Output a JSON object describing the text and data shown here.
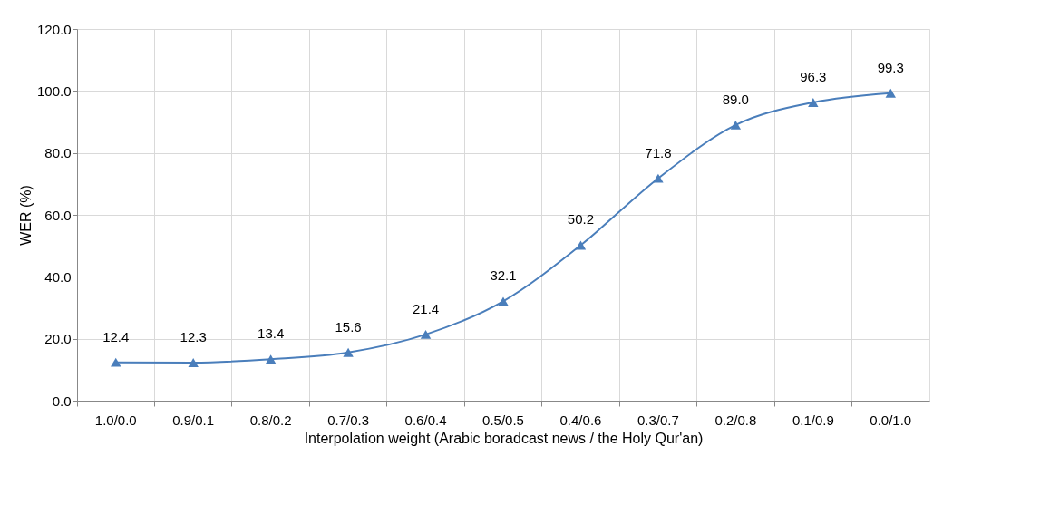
{
  "chart_data": {
    "type": "line",
    "xlabel": "Interpolation weight (Arabic boradcast news / the Holy Qur'an)",
    "ylabel": "WER (%)",
    "categories": [
      "1.0/0.0",
      "0.9/0.1",
      "0.8/0.2",
      "0.7/0.3",
      "0.6/0.4",
      "0.5/0.5",
      "0.4/0.6",
      "0.3/0.7",
      "0.2/0.8",
      "0.1/0.9",
      "0.0/1.0"
    ],
    "series": [
      {
        "color": "#4a7ebb",
        "values": [
          12.4,
          12.3,
          13.4,
          15.6,
          21.4,
          32.1,
          50.2,
          71.8,
          89.0,
          96.3,
          99.3
        ],
        "value_labels": [
          "12.4",
          "12.3",
          "13.4",
          "15.6",
          "21.4",
          "32.1",
          "50.2",
          "71.8",
          "89.0",
          "96.3",
          "99.3"
        ]
      }
    ],
    "ylim": [
      0,
      120
    ],
    "yticks": [
      {
        "value": 0,
        "label": "0.0"
      },
      {
        "value": 20,
        "label": "20.0"
      },
      {
        "value": 40,
        "label": "40.0"
      },
      {
        "value": 60,
        "label": "60.0"
      },
      {
        "value": 80,
        "label": "80.0"
      },
      {
        "value": 100,
        "label": "100.0"
      },
      {
        "value": 120,
        "label": "120.0"
      }
    ],
    "grid": true,
    "marker": "triangle",
    "line_style": "solid"
  }
}
